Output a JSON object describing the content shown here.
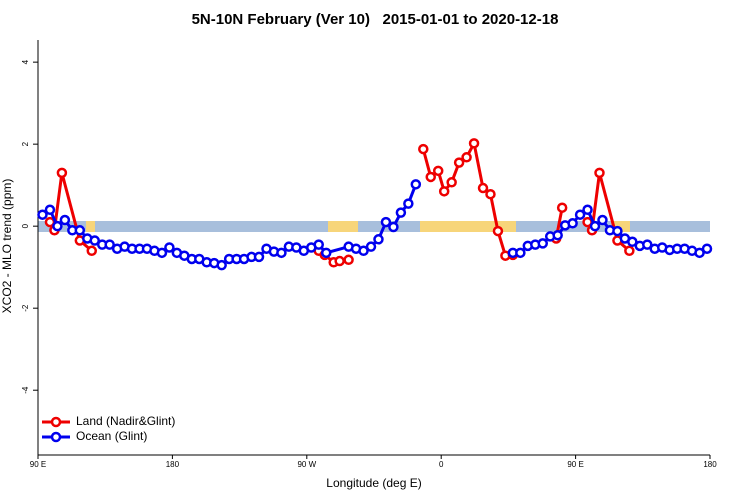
{
  "chart_data": {
    "type": "line",
    "title": "5N-10N February (Ver 10)   2015-01-01 to 2020-12-18",
    "x_label": "Longitude (deg E)",
    "y_label": "XCO2 - MLO trend (ppm)",
    "xlim": [
      90,
      540
    ],
    "xticks": [
      {
        "value": 90,
        "label": "90 E"
      },
      180,
      {
        "value": 270,
        "label": "90 W"
      },
      {
        "value": 360,
        "label": "0"
      },
      {
        "value": 450,
        "label": "90 E"
      },
      {
        "value": 540,
        "label": "180"
      }
    ],
    "ylim": [
      -5.58,
      4.54
    ],
    "yticks": [
      -4,
      -2,
      0,
      2,
      4
    ],
    "legend": "bottomleft",
    "series": [
      {
        "name": "Land (Nadir&Glint)",
        "color": "#ee0000",
        "x": [
          98,
          101,
          106,
          118,
          126,
          null,
          278,
          282,
          288,
          292,
          298,
          null,
          348,
          353,
          358,
          362,
          367,
          372,
          377,
          382,
          388,
          393,
          398,
          403,
          408,
          null,
          437,
          441,
          null,
          458,
          461,
          466,
          478,
          486
        ],
        "values": [
          0.1,
          -0.1,
          1.3,
          -0.35,
          -0.6,
          null,
          -0.6,
          -0.7,
          -0.88,
          -0.85,
          -0.82,
          null,
          1.88,
          1.2,
          1.35,
          0.85,
          1.07,
          1.55,
          1.68,
          2.02,
          0.93,
          0.78,
          -0.12,
          -0.72,
          -0.7,
          null,
          -0.3,
          0.45,
          null,
          0.1,
          -0.1,
          1.3,
          -0.35,
          -0.6
        ]
      },
      {
        "name": "Ocean (Glint)",
        "color": "#0000ee",
        "x": [
          93,
          98,
          103,
          108,
          113,
          118,
          123,
          128,
          133,
          138,
          143,
          148,
          153,
          158,
          163,
          168,
          173,
          178,
          183,
          188,
          193,
          198,
          203,
          208,
          213,
          218,
          223,
          228,
          233,
          238,
          243,
          248,
          253,
          258,
          263,
          268,
          273,
          278,
          283,
          298,
          303,
          308,
          313,
          318,
          323,
          328,
          333,
          338,
          343,
          null,
          408,
          413,
          418,
          423,
          428,
          433,
          438,
          443,
          448,
          453,
          458,
          463,
          468,
          473,
          478,
          483,
          488,
          493,
          498,
          503,
          508,
          513,
          518,
          523,
          528,
          533,
          538
        ],
        "values": [
          0.28,
          0.4,
          0.0,
          0.15,
          -0.1,
          -0.1,
          -0.3,
          -0.35,
          -0.45,
          -0.45,
          -0.55,
          -0.5,
          -0.55,
          -0.55,
          -0.55,
          -0.6,
          -0.65,
          -0.52,
          -0.65,
          -0.72,
          -0.8,
          -0.8,
          -0.88,
          -0.9,
          -0.95,
          -0.8,
          -0.8,
          -0.8,
          -0.75,
          -0.75,
          -0.55,
          -0.62,
          -0.65,
          -0.5,
          -0.52,
          -0.6,
          -0.52,
          -0.45,
          -0.65,
          -0.5,
          -0.55,
          -0.6,
          -0.5,
          -0.32,
          0.1,
          -0.02,
          0.33,
          0.55,
          1.02,
          null,
          -0.65,
          -0.65,
          -0.48,
          -0.45,
          -0.42,
          -0.25,
          -0.22,
          0.02,
          0.07,
          0.28,
          0.4,
          0.0,
          0.15,
          -0.1,
          -0.12,
          -0.3,
          -0.38,
          -0.48,
          -0.45,
          -0.55,
          -0.52,
          -0.58,
          -0.55,
          -0.55,
          -0.6,
          -0.65,
          -0.55
        ]
      }
    ]
  }
}
